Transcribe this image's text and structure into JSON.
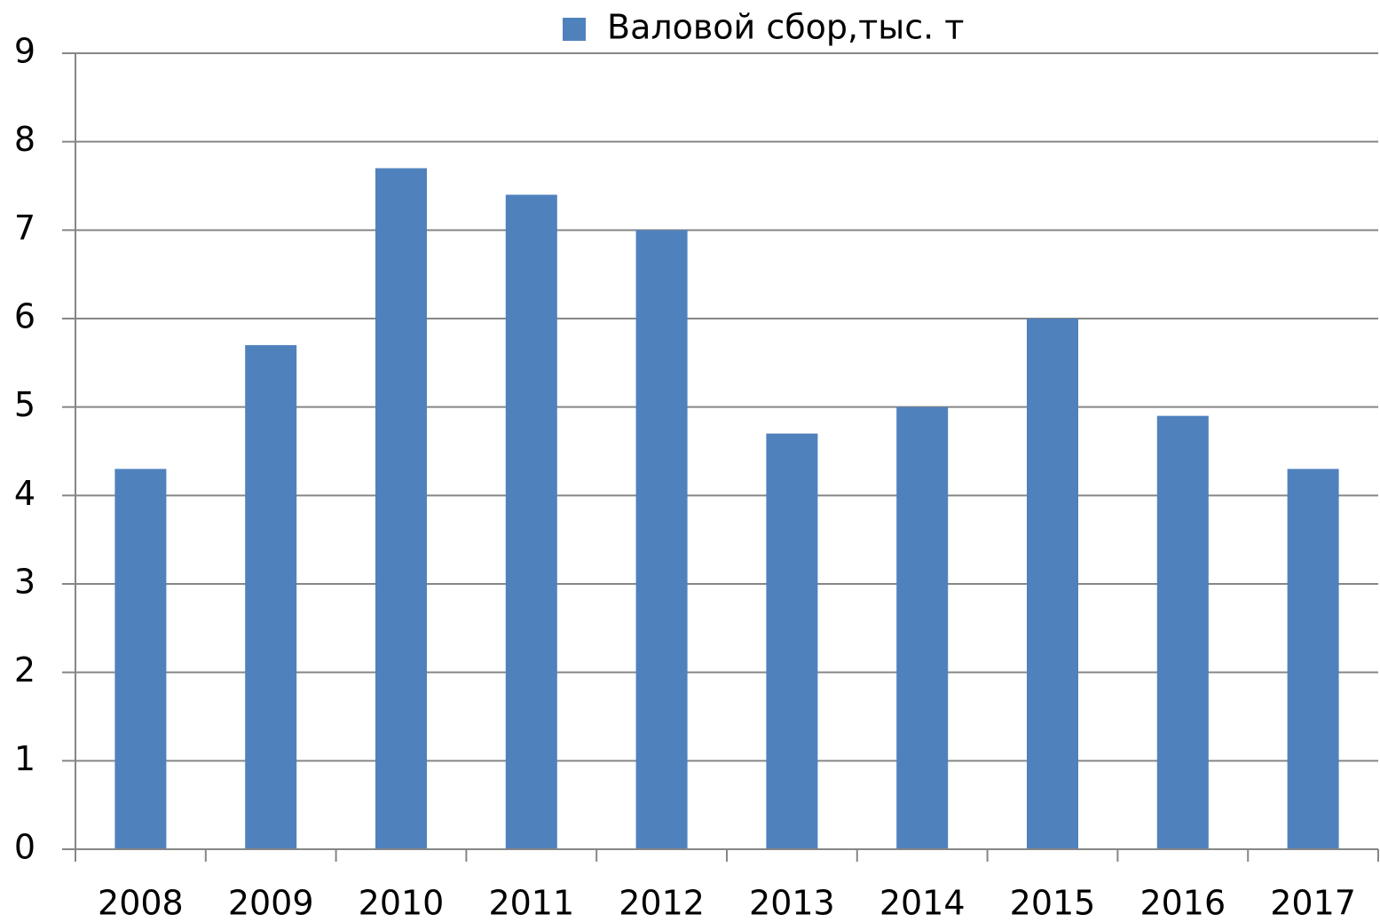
{
  "chart_data": {
    "type": "bar",
    "categories": [
      "2008",
      "2009",
      "2010",
      "2011",
      "2012",
      "2013",
      "2014",
      "2015",
      "2016",
      "2017"
    ],
    "series": [
      {
        "name": "Валовой сбор,тыс. т",
        "color": "#4f81bd",
        "values": [
          4.3,
          5.7,
          7.7,
          7.4,
          7.0,
          4.7,
          5.0,
          6.0,
          4.9,
          4.3
        ]
      }
    ],
    "ylim": [
      0,
      9
    ],
    "yticks": [
      0,
      1,
      2,
      3,
      4,
      5,
      6,
      7,
      8,
      9
    ],
    "grid": true,
    "legend": "top"
  }
}
